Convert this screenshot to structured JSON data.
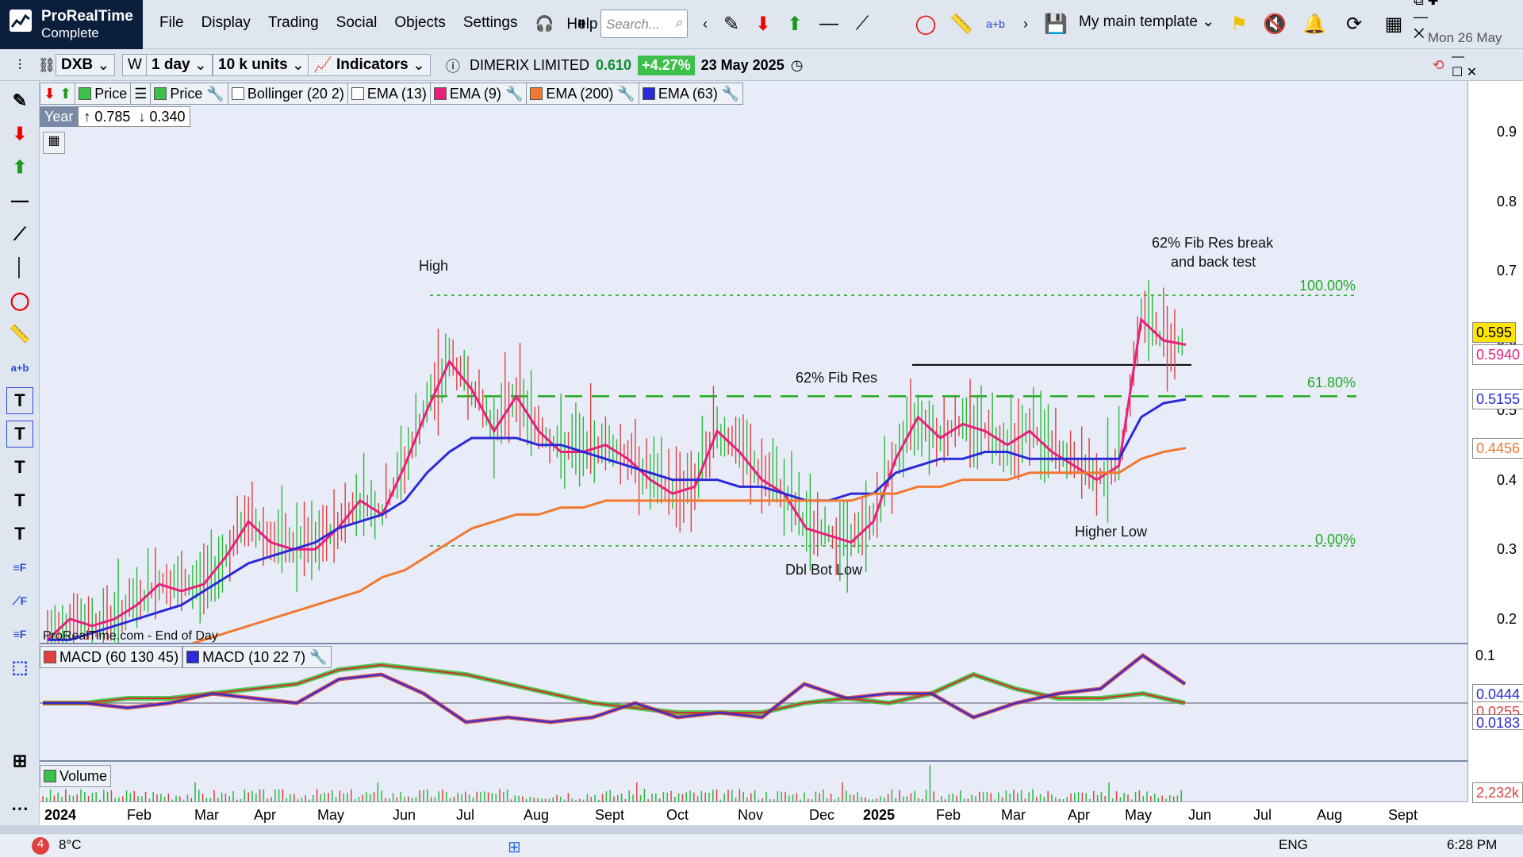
{
  "app": {
    "name": "ProRealTime",
    "edition": "Complete"
  },
  "menu": [
    "File",
    "Display",
    "Trading",
    "Social",
    "Objects",
    "Settings",
    "Help"
  ],
  "search": {
    "placeholder": "Search..."
  },
  "template": {
    "label": "My main template"
  },
  "date_display": "Mon 26 May",
  "toolbar2": {
    "ticker": "DXB",
    "w": "W",
    "timeframe": "1 day",
    "units": "10 k units",
    "indicators": "Indicators",
    "instrument": "DIMERIX LIMITED",
    "last": "0.610",
    "change": "+4.27%",
    "date": "23 May 2025"
  },
  "legend": {
    "price1": "Price",
    "price2": "Price",
    "bollinger": "Bollinger (20 2)",
    "ema13": "EMA (13)",
    "ema9": "EMA (9)",
    "ema200": "EMA (200)",
    "ema63": "EMA (63)"
  },
  "year_box": {
    "label": "Year",
    "high": "↑ 0.785",
    "low": "↓ 0.340"
  },
  "annotations": {
    "high": "High",
    "fib62": "62% Fib Res",
    "fibbreak1": "62% Fib Res break",
    "fibbreak2": "and back test",
    "fib100": "100.00%",
    "fib618": "61.80%",
    "fib0": "0.00%",
    "dblbot": "Dbl Bot Low",
    "higherlow": "Higher Low",
    "source": "ProRealTime.com - End of Day"
  },
  "price_tags": {
    "last": "0.595",
    "ema9": "0.5940",
    "ema63": "0.5155",
    "ema200": "0.4456"
  },
  "macd": {
    "label1": "MACD (60 130 45)",
    "label2": "MACD (10 22 7)",
    "tag1": "0.0444",
    "tag2": "0.0255",
    "tag3": "0.0183"
  },
  "volume": {
    "label": "Volume",
    "tag": "2,232k"
  },
  "taskbar": {
    "badge": "4",
    "temp": "8°C",
    "lang": "ENG",
    "time": "6:28 PM"
  },
  "colors": {
    "ema9": "#e8207a",
    "ema63": "#2a2ad8",
    "ema200": "#f07830",
    "fib": "#22aa22",
    "bg": "#e8ecf8"
  },
  "chart_data": {
    "type": "line",
    "title": "DXB 1 day",
    "ylim": [
      0.15,
      0.95
    ],
    "y_ticks": [
      0.2,
      0.3,
      0.4,
      0.5,
      0.6,
      0.7,
      0.8,
      0.9
    ],
    "x_labels": [
      "2024",
      "Feb",
      "Mar",
      "Apr",
      "May",
      "Jun",
      "Jul",
      "Aug",
      "Sept",
      "Oct",
      "Nov",
      "Dec",
      "2025",
      "Feb",
      "Mar",
      "Apr",
      "May",
      "Jun",
      "Jul",
      "Aug",
      "Sept"
    ],
    "fib_levels": [
      {
        "label": "100.00%",
        "value": 0.665
      },
      {
        "label": "61.80%",
        "value": 0.52
      },
      {
        "label": "0.00%",
        "value": 0.305
      }
    ],
    "resistance_line": 0.565,
    "series": [
      {
        "name": "EMA (9)",
        "color": "#e8207a",
        "values": [
          0.17,
          0.2,
          0.19,
          0.2,
          0.22,
          0.25,
          0.24,
          0.25,
          0.29,
          0.34,
          0.31,
          0.3,
          0.3,
          0.33,
          0.37,
          0.35,
          0.42,
          0.5,
          0.57,
          0.53,
          0.47,
          0.52,
          0.47,
          0.44,
          0.44,
          0.45,
          0.43,
          0.4,
          0.38,
          0.39,
          0.47,
          0.44,
          0.4,
          0.38,
          0.33,
          0.32,
          0.31,
          0.34,
          0.43,
          0.49,
          0.46,
          0.48,
          0.47,
          0.45,
          0.47,
          0.44,
          0.42,
          0.4,
          0.42,
          0.63,
          0.6,
          0.594
        ]
      },
      {
        "name": "EMA (63)",
        "color": "#2a2ad8",
        "values": [
          0.17,
          0.17,
          0.18,
          0.19,
          0.2,
          0.21,
          0.22,
          0.24,
          0.26,
          0.28,
          0.29,
          0.3,
          0.31,
          0.33,
          0.34,
          0.35,
          0.37,
          0.41,
          0.44,
          0.46,
          0.46,
          0.46,
          0.45,
          0.45,
          0.44,
          0.43,
          0.42,
          0.41,
          0.4,
          0.4,
          0.4,
          0.39,
          0.39,
          0.38,
          0.37,
          0.37,
          0.38,
          0.38,
          0.41,
          0.42,
          0.43,
          0.43,
          0.44,
          0.44,
          0.43,
          0.43,
          0.43,
          0.43,
          0.43,
          0.49,
          0.51,
          0.5155
        ]
      },
      {
        "name": "EMA (200)",
        "color": "#f07830",
        "values": [
          0.1,
          0.11,
          0.12,
          0.13,
          0.14,
          0.15,
          0.16,
          0.17,
          0.18,
          0.19,
          0.2,
          0.21,
          0.22,
          0.23,
          0.24,
          0.26,
          0.27,
          0.29,
          0.31,
          0.33,
          0.34,
          0.35,
          0.35,
          0.36,
          0.36,
          0.37,
          0.37,
          0.37,
          0.37,
          0.37,
          0.37,
          0.37,
          0.37,
          0.37,
          0.37,
          0.37,
          0.37,
          0.38,
          0.38,
          0.39,
          0.39,
          0.4,
          0.4,
          0.4,
          0.41,
          0.41,
          0.41,
          0.41,
          0.41,
          0.43,
          0.44,
          0.4456
        ]
      }
    ]
  }
}
